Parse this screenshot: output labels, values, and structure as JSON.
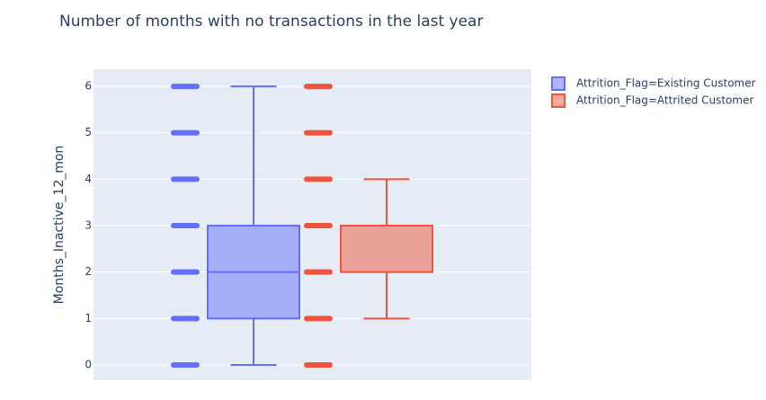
{
  "chart_data": {
    "type": "box",
    "title": "Number of months with no transactions in the last year",
    "y_label": "Months_Inactive_12_mon",
    "ylim": [
      -0.33,
      6.37
    ],
    "yticks": [
      0,
      1,
      2,
      3,
      4,
      5,
      6
    ],
    "grid": true,
    "series": [
      {
        "name": "Attrition_Flag=Existing Customer",
        "color": "#636efa",
        "min": 0,
        "q1": 1,
        "median": 2,
        "q3": 3,
        "max": 6,
        "points": [
          0,
          1,
          2,
          3,
          4,
          5,
          6
        ]
      },
      {
        "name": "Attrition_Flag=Attrited Customer",
        "color": "#ef553b",
        "min": 1,
        "q1": 2,
        "median": 3,
        "q3": 3,
        "max": 4,
        "points": [
          0,
          1,
          2,
          3,
          4,
          5,
          6
        ]
      }
    ]
  }
}
